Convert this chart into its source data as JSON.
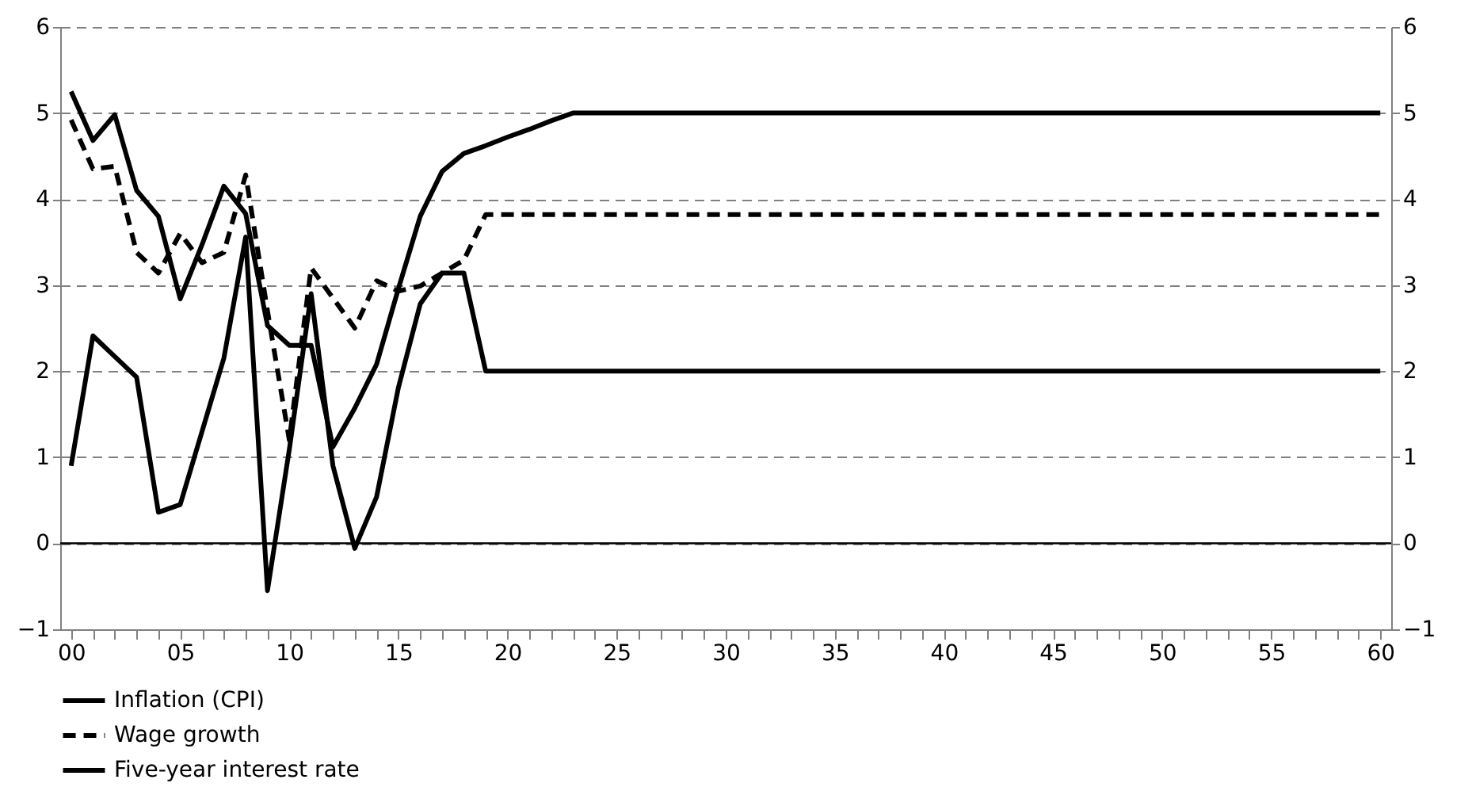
{
  "chart_data": {
    "type": "line",
    "x": [
      0,
      1,
      2,
      3,
      4,
      5,
      6,
      7,
      8,
      9,
      10,
      11,
      12,
      13,
      14,
      15,
      16,
      17,
      18,
      19,
      20,
      21,
      22,
      23,
      24,
      25,
      26,
      27,
      28,
      29,
      30,
      31,
      32,
      33,
      34,
      35,
      36,
      37,
      38,
      39,
      40,
      41,
      42,
      43,
      44,
      45,
      46,
      47,
      48,
      49,
      50,
      51,
      52,
      53,
      54,
      55,
      56,
      57,
      58,
      59,
      60
    ],
    "series": [
      {
        "name": "Inflation (CPI)",
        "color": "#000000",
        "line_style": "solid",
        "values": [
          0.9,
          2.41,
          2.17,
          1.93,
          0.36,
          0.45,
          1.3,
          2.15,
          3.56,
          -0.55,
          1.09,
          2.9,
          0.9,
          -0.06,
          0.54,
          1.81,
          2.78,
          3.14,
          3.14,
          2.0,
          2,
          2,
          2,
          2,
          2,
          2,
          2,
          2,
          2,
          2,
          2,
          2,
          2,
          2,
          2,
          2,
          2,
          2,
          2,
          2,
          2,
          2,
          2,
          2,
          2,
          2,
          2,
          2,
          2,
          2,
          2,
          2,
          2,
          2,
          2,
          2,
          2,
          2,
          2,
          2,
          2
        ]
      },
      {
        "name": "Wage growth",
        "color": "#000000",
        "line_style": "dashed",
        "values": [
          4.92,
          4.35,
          4.38,
          3.38,
          3.14,
          3.6,
          3.26,
          3.38,
          4.28,
          2.7,
          1.2,
          3.2,
          2.85,
          2.5,
          3.05,
          2.93,
          2.99,
          3.14,
          3.29,
          3.82,
          3.82,
          3.82,
          3.82,
          3.82,
          3.82,
          3.82,
          3.82,
          3.82,
          3.82,
          3.82,
          3.82,
          3.82,
          3.82,
          3.82,
          3.82,
          3.82,
          3.82,
          3.82,
          3.82,
          3.82,
          3.82,
          3.82,
          3.82,
          3.82,
          3.82,
          3.82,
          3.82,
          3.82,
          3.82,
          3.82,
          3.82,
          3.82,
          3.82,
          3.82,
          3.82,
          3.82,
          3.82,
          3.82,
          3.82,
          3.82,
          3.82
        ]
      },
      {
        "name": "Five-year interest rate",
        "color": "#000000",
        "line_style": "solid",
        "values": [
          5.25,
          4.68,
          4.98,
          4.1,
          3.8,
          2.84,
          3.47,
          4.15,
          3.83,
          2.53,
          2.3,
          2.3,
          1.12,
          1.57,
          2.08,
          2.96,
          3.8,
          4.32,
          4.53,
          4.62,
          4.72,
          4.81,
          4.91,
          5,
          5,
          5,
          5,
          5,
          5,
          5,
          5,
          5,
          5,
          5,
          5,
          5,
          5,
          5,
          5,
          5,
          5,
          5,
          5,
          5,
          5,
          5,
          5,
          5,
          5,
          5,
          5,
          5,
          5,
          5,
          5,
          5,
          5,
          5,
          5,
          5,
          5
        ]
      }
    ],
    "xlim": [
      -0.5,
      60.5
    ],
    "xticks": [
      {
        "value": 0,
        "label": "00"
      },
      {
        "value": 1,
        "label": null
      },
      {
        "value": 2,
        "label": null
      },
      {
        "value": 3,
        "label": null
      },
      {
        "value": 4,
        "label": null
      },
      {
        "value": 5,
        "label": "05"
      },
      {
        "value": 6,
        "label": null
      },
      {
        "value": 7,
        "label": null
      },
      {
        "value": 8,
        "label": null
      },
      {
        "value": 9,
        "label": null
      },
      {
        "value": 10,
        "label": "10"
      },
      {
        "value": 11,
        "label": null
      },
      {
        "value": 12,
        "label": null
      },
      {
        "value": 13,
        "label": null
      },
      {
        "value": 14,
        "label": null
      },
      {
        "value": 15,
        "label": "15"
      },
      {
        "value": 16,
        "label": null
      },
      {
        "value": 17,
        "label": null
      },
      {
        "value": 18,
        "label": null
      },
      {
        "value": 19,
        "label": null
      },
      {
        "value": 20,
        "label": "20"
      },
      {
        "value": 21,
        "label": null
      },
      {
        "value": 22,
        "label": null
      },
      {
        "value": 23,
        "label": null
      },
      {
        "value": 24,
        "label": null
      },
      {
        "value": 25,
        "label": "25"
      },
      {
        "value": 26,
        "label": null
      },
      {
        "value": 27,
        "label": null
      },
      {
        "value": 28,
        "label": null
      },
      {
        "value": 29,
        "label": null
      },
      {
        "value": 30,
        "label": "30"
      },
      {
        "value": 31,
        "label": null
      },
      {
        "value": 32,
        "label": null
      },
      {
        "value": 33,
        "label": null
      },
      {
        "value": 34,
        "label": null
      },
      {
        "value": 35,
        "label": "35"
      },
      {
        "value": 36,
        "label": null
      },
      {
        "value": 37,
        "label": null
      },
      {
        "value": 38,
        "label": null
      },
      {
        "value": 39,
        "label": null
      },
      {
        "value": 40,
        "label": "40"
      },
      {
        "value": 41,
        "label": null
      },
      {
        "value": 42,
        "label": null
      },
      {
        "value": 43,
        "label": null
      },
      {
        "value": 44,
        "label": null
      },
      {
        "value": 45,
        "label": "45"
      },
      {
        "value": 46,
        "label": null
      },
      {
        "value": 47,
        "label": null
      },
      {
        "value": 48,
        "label": null
      },
      {
        "value": 49,
        "label": null
      },
      {
        "value": 50,
        "label": "50"
      },
      {
        "value": 51,
        "label": null
      },
      {
        "value": 52,
        "label": null
      },
      {
        "value": 53,
        "label": null
      },
      {
        "value": 54,
        "label": null
      },
      {
        "value": 55,
        "label": "55"
      },
      {
        "value": 56,
        "label": null
      },
      {
        "value": 57,
        "label": null
      },
      {
        "value": 58,
        "label": null
      },
      {
        "value": 59,
        "label": null
      },
      {
        "value": 60,
        "label": "60"
      }
    ],
    "ylim": [
      -1,
      6
    ],
    "yticks": [
      -1,
      0,
      1,
      2,
      3,
      4,
      5,
      6
    ],
    "y2lim": [
      -1,
      6
    ],
    "y2ticks": [
      -1,
      0,
      1,
      2,
      3,
      4,
      5,
      6
    ],
    "ref_lines": [
      {
        "axis": "y",
        "value": 0,
        "color": "#000000",
        "line_style": "solid"
      }
    ],
    "grid": "y",
    "legend": "bottom left"
  }
}
